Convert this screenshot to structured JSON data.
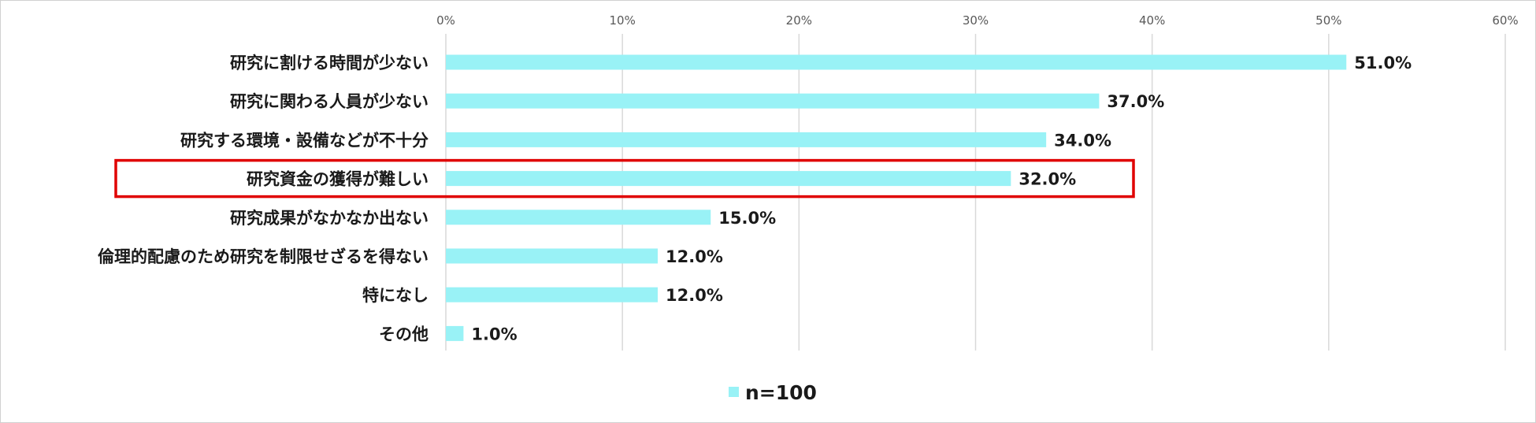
{
  "chart_data": {
    "type": "bar",
    "orientation": "horizontal",
    "categories": [
      "研究に割ける時間が少ない",
      "研究に関わる人員が少ない",
      "研究する環境・設備などが不十分",
      "研究資金の獲得が難しい",
      "研究成果がなかなか出ない",
      "倫理的配慮のため研究を制限せざるを得ない",
      "特になし",
      "その他"
    ],
    "series": [
      {
        "name": "n=100",
        "values": [
          51.0,
          37.0,
          34.0,
          32.0,
          15.0,
          12.0,
          12.0,
          1.0
        ]
      }
    ],
    "data_labels": [
      "51.0%",
      "37.0%",
      "34.0%",
      "32.0%",
      "15.0%",
      "12.0%",
      "12.0%",
      "1.0%"
    ],
    "xlim": [
      0,
      60
    ],
    "x_ticks": [
      0,
      10,
      20,
      30,
      40,
      50,
      60
    ],
    "x_tick_labels": [
      "0%",
      "10%",
      "20%",
      "30%",
      "40%",
      "50%",
      "60%"
    ],
    "x_axis_position": "top",
    "grid": true,
    "legend": "bottom",
    "highlighted_category": "研究資金の獲得が難しい",
    "colors": {
      "bar": "#99f2f6",
      "grid": "#d9d9d9",
      "highlight_box": "#e00000",
      "text": "#1a1a1a",
      "tick": "#595959"
    }
  }
}
